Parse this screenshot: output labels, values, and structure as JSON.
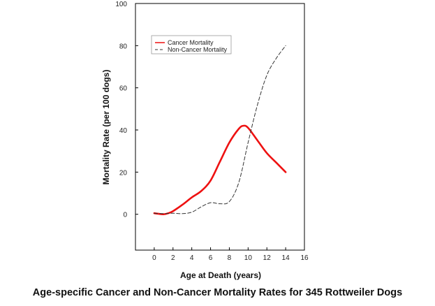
{
  "caption": "Age-specific Cancer and Non-Cancer Mortality Rates for 345 Rottweiler Dogs",
  "chart_data": {
    "type": "line",
    "title": "",
    "xlabel": "Age at Death (years)",
    "ylabel": "Mortality Rate (per 100 dogs)",
    "xlim": [
      -2,
      16
    ],
    "ylim": [
      -17,
      100
    ],
    "xticks": [
      0,
      2,
      4,
      6,
      8,
      10,
      12,
      14,
      16
    ],
    "yticks": [
      0,
      20,
      40,
      60,
      80,
      100
    ],
    "grid": false,
    "legend_position": "top-left",
    "series": [
      {
        "name": "Cancer Mortality",
        "color": "#ee1111",
        "style": "solid",
        "x": [
          0,
          0.5,
          1,
          1.5,
          2,
          3,
          4,
          5,
          6,
          7,
          8,
          9,
          9.5,
          10,
          11,
          12,
          13,
          14
        ],
        "y": [
          0.5,
          0.2,
          0,
          0.5,
          1.5,
          4.5,
          8,
          11,
          16,
          25,
          34,
          40.5,
          42,
          41,
          35,
          29,
          24.5,
          20
        ]
      },
      {
        "name": "Non-Cancer Mortality",
        "color": "#333333",
        "style": "dashed",
        "x": [
          0,
          1,
          2,
          3,
          4,
          5,
          6,
          7,
          8,
          9,
          10,
          11,
          12,
          13,
          14
        ],
        "y": [
          0.5,
          0.3,
          0.5,
          0.3,
          1,
          3.5,
          5.5,
          5,
          6,
          15,
          34,
          52,
          66,
          74,
          80
        ]
      }
    ]
  }
}
